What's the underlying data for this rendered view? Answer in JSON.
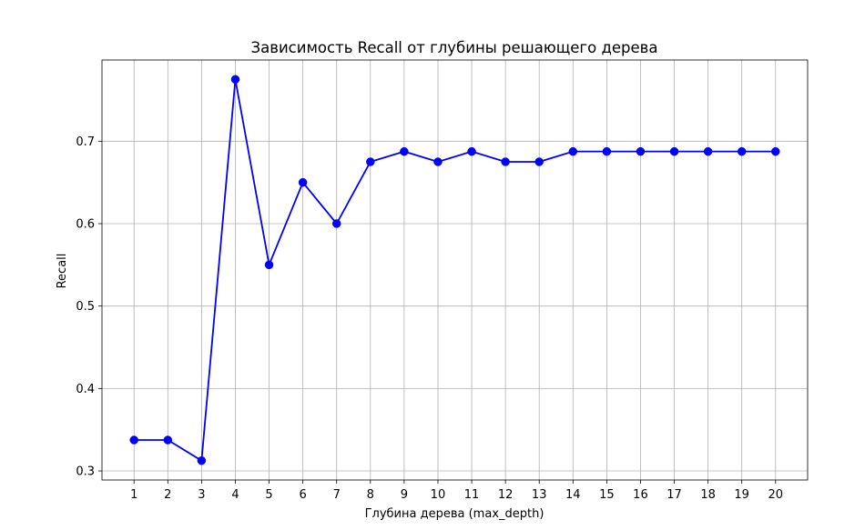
{
  "chart_data": {
    "type": "line",
    "title": "Зависимость Recall от глубины решающего дерева",
    "xlabel": "Глубина дерева (max_depth)",
    "ylabel": "Recall",
    "x": [
      1,
      2,
      3,
      4,
      5,
      6,
      7,
      8,
      9,
      10,
      11,
      12,
      13,
      14,
      15,
      16,
      17,
      18,
      19,
      20
    ],
    "series": [
      {
        "values": [
          0.3375,
          0.3375,
          0.3125,
          0.775,
          0.55,
          0.65,
          0.6,
          0.675,
          0.6875,
          0.675,
          0.6875,
          0.675,
          0.675,
          0.6875,
          0.6875,
          0.6875,
          0.6875,
          0.6875,
          0.6875,
          0.6875
        ],
        "color": "#0000ff",
        "marker": "circle"
      }
    ],
    "xlim": [
      0.05,
      20.95
    ],
    "ylim": [
      0.289,
      0.7985
    ],
    "xticks": [
      "1",
      "2",
      "3",
      "4",
      "5",
      "6",
      "7",
      "8",
      "9",
      "10",
      "11",
      "12",
      "13",
      "14",
      "15",
      "16",
      "17",
      "18",
      "19",
      "20"
    ],
    "yticks": [
      "0.3",
      "0.4",
      "0.5",
      "0.6",
      "0.7"
    ],
    "grid": true,
    "legend": "none"
  }
}
